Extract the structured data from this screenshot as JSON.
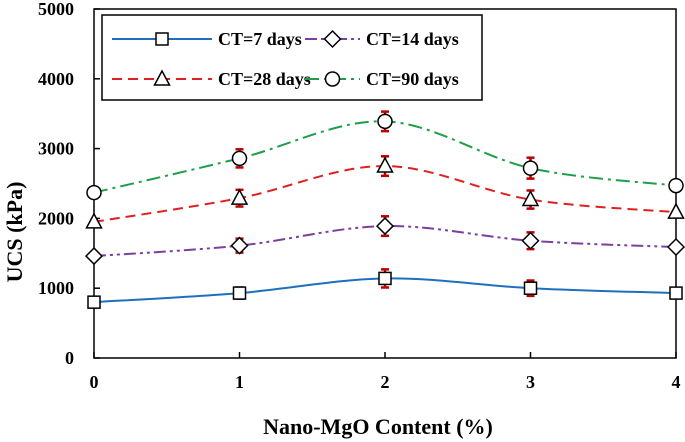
{
  "chart_data": {
    "type": "line",
    "xlabel": "Nano-MgO Content (%)",
    "ylabel": "UCS (kPa)",
    "x": [
      0,
      1,
      2,
      3,
      4
    ],
    "x_ticks": [
      "0",
      "1",
      "2",
      "3",
      "4"
    ],
    "y_ticks": [
      "0",
      "1000",
      "2000",
      "3000",
      "4000",
      "5000"
    ],
    "xlim": [
      0,
      4
    ],
    "ylim": [
      0,
      5000
    ],
    "grid": false,
    "legend_position": "top-left",
    "series": [
      {
        "name": "CT=7 days",
        "values": [
          800,
          930,
          1140,
          1000,
          930
        ],
        "errors": [
          0,
          80,
          130,
          110,
          0
        ],
        "color": "#1F6FBF",
        "dash": "solid",
        "marker": "square"
      },
      {
        "name": "CT=14 days",
        "values": [
          1460,
          1610,
          1890,
          1680,
          1590
        ],
        "errors": [
          0,
          100,
          140,
          120,
          0
        ],
        "color": "#7B3FA0",
        "dash": "dash-dot-dot",
        "marker": "diamond"
      },
      {
        "name": "CT=28 days",
        "values": [
          1950,
          2290,
          2750,
          2270,
          2090
        ],
        "errors": [
          0,
          120,
          140,
          130,
          0
        ],
        "color": "#E02020",
        "dash": "dashed",
        "marker": "triangle"
      },
      {
        "name": "CT=90 days",
        "values": [
          2370,
          2860,
          3390,
          2720,
          2470
        ],
        "errors": [
          0,
          130,
          140,
          150,
          0
        ],
        "color": "#1E9E4A",
        "dash": "dash-dot",
        "marker": "circle"
      }
    ]
  }
}
